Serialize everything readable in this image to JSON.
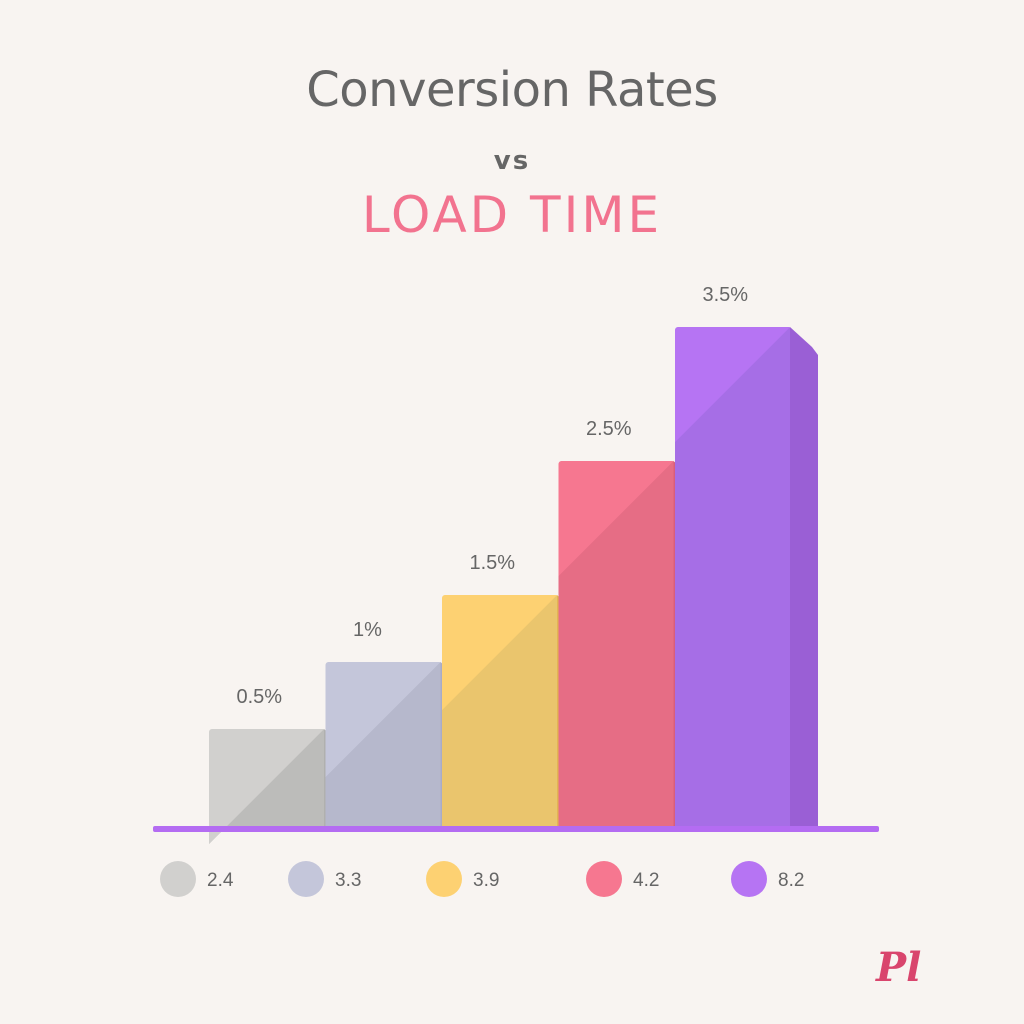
{
  "header": {
    "title": "Conversion Rates",
    "vs": "vs",
    "subtitle": "LOAD TIME"
  },
  "logo_text": "Pl",
  "chart_data": {
    "type": "bar",
    "title": "Conversion Rates vs LOAD TIME",
    "categories": [
      "2.4",
      "3.3",
      "3.9",
      "4.2",
      "8.2"
    ],
    "values": [
      0.5,
      1,
      1.5,
      2.5,
      3.5
    ],
    "value_labels": [
      "0.5%",
      "1%",
      "1.5%",
      "2.5%",
      "3.5%"
    ],
    "legend_labels": [
      "2.4",
      "3.3",
      "3.9",
      "4.2",
      "8.2"
    ],
    "colors": [
      "#d1d0ce",
      "#c4c6da",
      "#fdd172",
      "#f67790",
      "#b674f3"
    ],
    "side_colors": [
      "#b0b0ae",
      "#a9abc8",
      "#e2b553",
      "#d95e7a",
      "#9a5fd5"
    ],
    "shadow_colors": [
      "#bcbcba",
      "#b6b8cc",
      "#eac56d",
      "#e66d85",
      "#a66ee6"
    ],
    "axis_color": "#b46cf2",
    "legend_position": "bottom",
    "grid": false
  }
}
